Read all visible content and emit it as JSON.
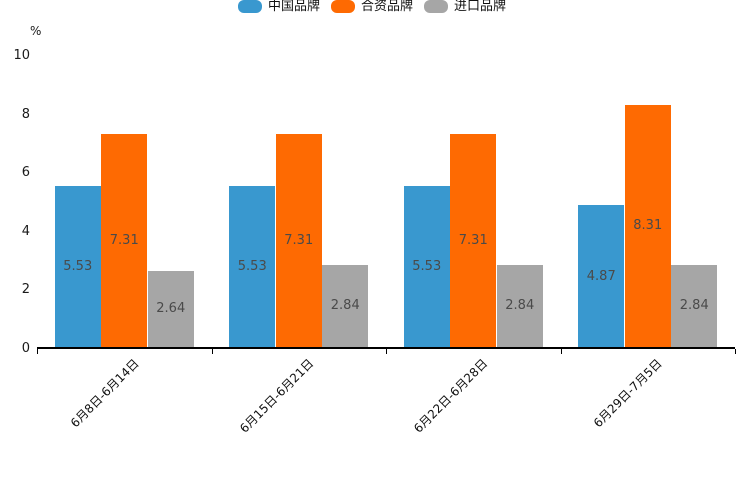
{
  "unit_label": "%",
  "colors": {
    "china_brand": "#3998cf",
    "joint_brand": "#fe6a02",
    "import_brand": "#a6a6a6",
    "axis": "#000000",
    "value_label": "#4a4a4a"
  },
  "legend": {
    "position": "top",
    "items": [
      {
        "label": "中国品牌",
        "color": "#3998cf"
      },
      {
        "label": "合资品牌",
        "color": "#fe6a02"
      },
      {
        "label": "进口品牌",
        "color": "#a6a6a6"
      }
    ]
  },
  "chart_data": {
    "type": "bar",
    "title": "",
    "xlabel": "",
    "ylabel": "%",
    "ylim": [
      0,
      10
    ],
    "yticks": [
      0,
      2,
      4,
      6,
      8,
      10
    ],
    "grid": false,
    "legend_position": "top",
    "categories": [
      "6月8日-6月14日",
      "6月15日-6月21日",
      "6月22日-6月28日",
      "6月29日-7月5日"
    ],
    "series": [
      {
        "name": "中国品牌",
        "color": "#3998cf",
        "values": [
          5.53,
          5.53,
          5.53,
          4.87
        ]
      },
      {
        "name": "合资品牌",
        "color": "#fe6a02",
        "values": [
          7.31,
          7.31,
          7.31,
          8.31
        ]
      },
      {
        "name": "进口品牌",
        "color": "#a6a6a6",
        "values": [
          2.64,
          2.84,
          2.84,
          2.84
        ]
      }
    ]
  }
}
